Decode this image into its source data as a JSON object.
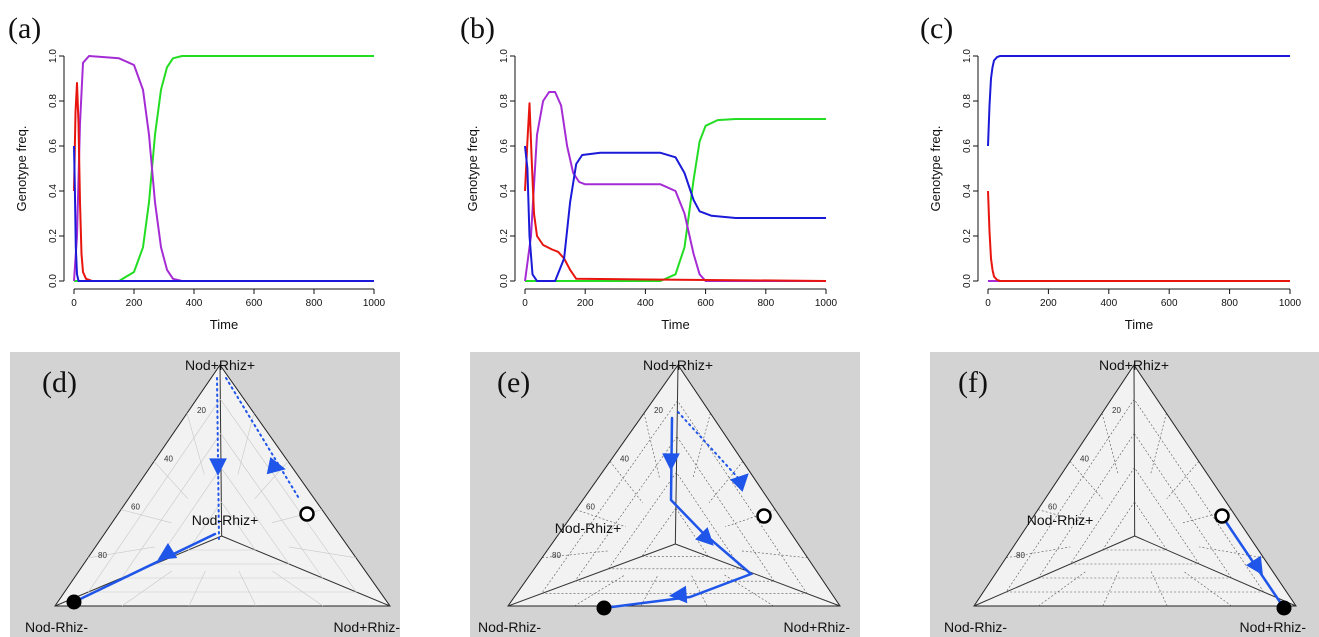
{
  "panels": [
    {
      "letter": "(a)",
      "ylabel": "Genotype freq.",
      "xlabel": "Time"
    },
    {
      "letter": "(b)",
      "ylabel": "Genotype freq.",
      "xlabel": "Time"
    },
    {
      "letter": "(c)",
      "ylabel": "Genotype freq.",
      "xlabel": "Time"
    },
    {
      "letter": "(d)",
      "vertex_top": "Nod+Rhiz+",
      "vertex_bl": "Nod-Rhiz-",
      "vertex_br": "Nod+Rhiz-",
      "center_label": "Nod-Rhiz+"
    },
    {
      "letter": "(e)",
      "vertex_top": "Nod+Rhiz+",
      "vertex_bl": "Nod-Rhiz-",
      "vertex_br": "Nod+Rhiz-",
      "center_label": "Nod-Rhiz+"
    },
    {
      "letter": "(f)",
      "vertex_top": "Nod+Rhiz+",
      "vertex_bl": "Nod-Rhiz-",
      "vertex_br": "Nod+Rhiz-",
      "center_label": "Nod-Rhiz+"
    }
  ],
  "colors": {
    "red": "#e8140e",
    "blue": "#1a1ad8",
    "purple": "#a52cd4",
    "green": "#22dd22",
    "tern_path": "#1f55e8",
    "tern_bg": "#d3d3d3"
  },
  "chart_data": [
    {
      "type": "line",
      "xlabel": "Time",
      "ylabel": "Genotype freq.",
      "xlim": [
        0,
        1000
      ],
      "ylim": [
        0,
        1
      ],
      "xticks": [
        "0",
        "200",
        "400",
        "600",
        "800",
        "1000"
      ],
      "yticks": [
        "0.0",
        "0.2",
        "0.4",
        "0.6",
        "0.8",
        "1.0"
      ],
      "series": [
        {
          "color": "red",
          "x": [
            0,
            5,
            10,
            15,
            20,
            25,
            30,
            40,
            60,
            1000
          ],
          "y": [
            0.4,
            0.75,
            0.88,
            0.7,
            0.35,
            0.12,
            0.04,
            0.01,
            0,
            0
          ]
        },
        {
          "color": "blue",
          "x": [
            0,
            3,
            6,
            10,
            15,
            1000
          ],
          "y": [
            0.6,
            0.4,
            0.15,
            0.03,
            0,
            0
          ]
        },
        {
          "color": "purple",
          "x": [
            0,
            10,
            20,
            30,
            50,
            150,
            200,
            230,
            250,
            270,
            290,
            310,
            330,
            360,
            1000
          ],
          "y": [
            0,
            0.2,
            0.7,
            0.97,
            1.0,
            0.99,
            0.96,
            0.85,
            0.65,
            0.35,
            0.15,
            0.05,
            0.01,
            0,
            0
          ]
        },
        {
          "color": "green",
          "x": [
            0,
            150,
            200,
            230,
            250,
            270,
            290,
            310,
            330,
            360,
            1000
          ],
          "y": [
            0,
            0,
            0.04,
            0.15,
            0.35,
            0.65,
            0.85,
            0.95,
            0.99,
            1.0,
            1.0
          ]
        }
      ]
    },
    {
      "type": "line",
      "xlabel": "Time",
      "ylabel": "Genotype freq.",
      "xlim": [
        0,
        1000
      ],
      "ylim": [
        0,
        1
      ],
      "xticks": [
        "0",
        "200",
        "400",
        "600",
        "800",
        "1000"
      ],
      "yticks": [
        "0.0",
        "0.2",
        "0.4",
        "0.6",
        "0.8",
        "1.0"
      ],
      "series": [
        {
          "color": "red",
          "x": [
            0,
            8,
            15,
            22,
            30,
            40,
            60,
            90,
            110,
            130,
            150,
            170,
            1000
          ],
          "y": [
            0.4,
            0.62,
            0.79,
            0.55,
            0.3,
            0.2,
            0.16,
            0.14,
            0.13,
            0.1,
            0.05,
            0.01,
            0
          ]
        },
        {
          "color": "blue",
          "x": [
            0,
            8,
            15,
            25,
            40,
            100,
            130,
            150,
            170,
            190,
            250,
            450,
            500,
            530,
            560,
            580,
            620,
            700,
            1000
          ],
          "y": [
            0.6,
            0.5,
            0.2,
            0.03,
            0.0,
            0.0,
            0.1,
            0.35,
            0.52,
            0.56,
            0.57,
            0.57,
            0.55,
            0.48,
            0.36,
            0.31,
            0.29,
            0.28,
            0.28
          ]
        },
        {
          "color": "purple",
          "x": [
            0,
            20,
            40,
            60,
            80,
            100,
            120,
            140,
            160,
            180,
            200,
            450,
            500,
            530,
            560,
            580,
            600,
            1000
          ],
          "y": [
            0,
            0.2,
            0.65,
            0.8,
            0.84,
            0.84,
            0.78,
            0.6,
            0.48,
            0.44,
            0.43,
            0.43,
            0.4,
            0.3,
            0.12,
            0.03,
            0.0,
            0
          ]
        },
        {
          "color": "green",
          "x": [
            0,
            450,
            500,
            530,
            560,
            580,
            600,
            640,
            700,
            1000
          ],
          "y": [
            0,
            0,
            0.03,
            0.15,
            0.45,
            0.62,
            0.69,
            0.715,
            0.72,
            0.72
          ]
        }
      ]
    },
    {
      "type": "line",
      "xlabel": "Time",
      "ylabel": "Genotype freq.",
      "xlim": [
        0,
        1000
      ],
      "ylim": [
        0,
        1
      ],
      "xticks": [
        "0",
        "200",
        "400",
        "600",
        "800",
        "1000"
      ],
      "yticks": [
        "0.0",
        "0.2",
        "0.4",
        "0.6",
        "0.8",
        "1.0"
      ],
      "series": [
        {
          "color": "red",
          "x": [
            0,
            5,
            10,
            15,
            20,
            30,
            40,
            1000
          ],
          "y": [
            0.4,
            0.22,
            0.1,
            0.05,
            0.02,
            0.005,
            0,
            0
          ]
        },
        {
          "color": "blue",
          "x": [
            0,
            5,
            10,
            15,
            20,
            30,
            40,
            1000
          ],
          "y": [
            0.6,
            0.78,
            0.9,
            0.95,
            0.98,
            0.995,
            1.0,
            1.0
          ]
        },
        {
          "color": "purple",
          "x": [
            0,
            1000
          ],
          "y": [
            0,
            0
          ]
        },
        {
          "color": "green",
          "x": [
            0,
            1000
          ],
          "y": [
            0,
            0
          ]
        }
      ]
    }
  ]
}
